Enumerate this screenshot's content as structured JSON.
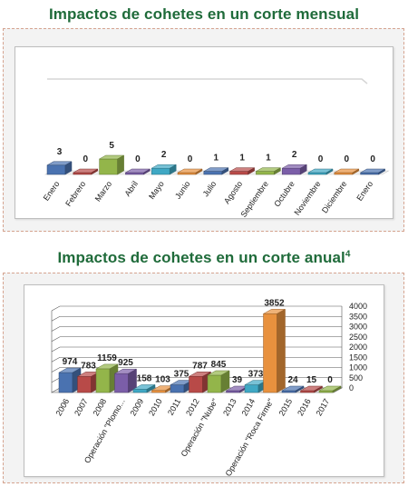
{
  "titles": {
    "monthly": "Impactos de cohetes en un corte mensual",
    "annual": "Impactos de cohetes en un corte anual",
    "annual_footnote": "4"
  },
  "chart_data": [
    {
      "type": "bar",
      "style": "3d-column",
      "grid": false,
      "y_axis_visible": false,
      "categories": [
        "Enero",
        "Febrero",
        "Marzo",
        "Abril",
        "Mayo",
        "Junio",
        "Julio",
        "Agosto",
        "Septiembre",
        "Octubre",
        "Noviembre",
        "Diciembre",
        "Enero"
      ],
      "values": [
        3,
        0,
        5,
        0,
        2,
        0,
        1,
        1,
        1,
        2,
        0,
        0,
        0
      ],
      "colors": [
        "#4a72b0",
        "#b84a48",
        "#93b54a",
        "#7b5ea8",
        "#3fa8c4",
        "#e8913e",
        "#4a72b0",
        "#b84a48",
        "#93b54a",
        "#7b5ea8",
        "#3fa8c4",
        "#e8913e",
        "#4a72b0"
      ],
      "title": "",
      "xlabel": "",
      "ylabel": ""
    },
    {
      "type": "bar",
      "style": "3d-column",
      "grid": true,
      "legend": "none",
      "categories": [
        "2006",
        "2007",
        "2008",
        "Operación \"Plomo...",
        "2009",
        "2010",
        "2011",
        "2012",
        "Operación \"Nube\"",
        "2013",
        "2014",
        "Operación \"Roca Firme\"",
        "2015",
        "2016",
        "2017"
      ],
      "values": [
        974,
        783,
        1159,
        925,
        158,
        103,
        375,
        787,
        845,
        39,
        373,
        3852,
        24,
        15,
        0
      ],
      "colors": [
        "#4a72b0",
        "#b84a48",
        "#93b54a",
        "#7b5ea8",
        "#3fa8c4",
        "#e8913e",
        "#4a72b0",
        "#b84a48",
        "#93b54a",
        "#7b5ea8",
        "#3fa8c4",
        "#e8913e",
        "#4a72b0",
        "#b84a48",
        "#93b54a"
      ],
      "ylim": [
        0,
        4000
      ],
      "yticks": [
        0,
        500,
        1000,
        1500,
        2000,
        2500,
        3000,
        3500,
        4000
      ],
      "title": "",
      "xlabel": "",
      "ylabel": ""
    }
  ]
}
